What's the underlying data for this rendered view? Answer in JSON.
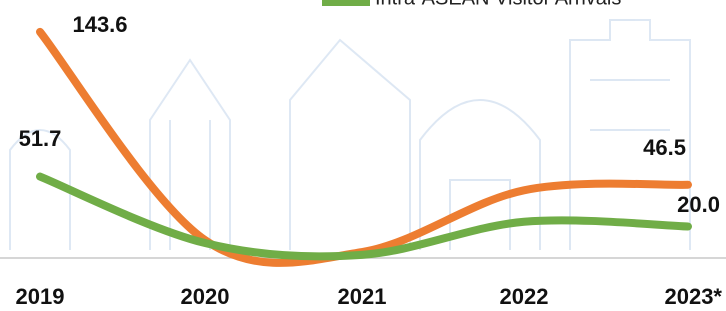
{
  "chart_data": {
    "type": "line",
    "categories": [
      "2019",
      "2020",
      "2021",
      "2022",
      "2023*"
    ],
    "series": [
      {
        "color": "#ed7d31",
        "values": [
          143.6,
          11.4,
          3.8,
          43,
          46.5
        ],
        "value_labels": [
          "143.6",
          null,
          null,
          null,
          "46.5"
        ]
      },
      {
        "name": "Intra-ASEAN Visitor Arrivals",
        "color": "#70ad47",
        "values": [
          51.7,
          9.5,
          2,
          23,
          20
        ],
        "value_labels": [
          "51.7",
          null,
          null,
          null,
          "20.0"
        ]
      }
    ],
    "ylim": [
      0,
      160
    ],
    "legend": "top"
  }
}
